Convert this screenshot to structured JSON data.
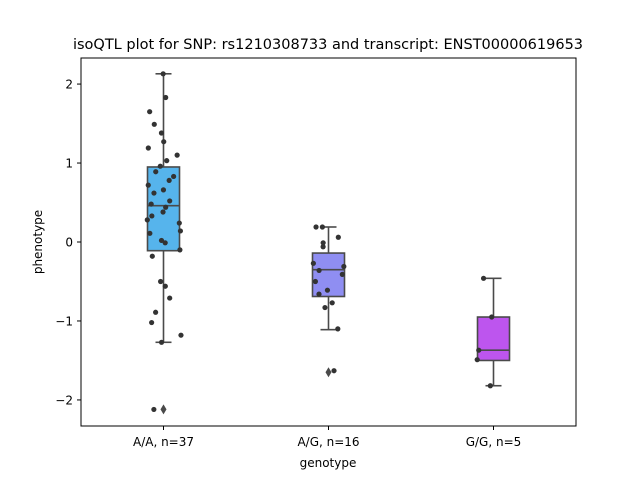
{
  "chart_data": {
    "type": "box",
    "title": "isoQTL plot for SNP: rs1210308733 and transcript: ENST00000619653",
    "xlabel": "genotype",
    "ylabel": "phenotype",
    "ylim": [
      -2.33,
      2.33
    ],
    "yticks": [
      -2,
      -1,
      0,
      1,
      2
    ],
    "categories": [
      "A/A, n=37",
      "A/G, n=16",
      "G/G, n=5"
    ],
    "colors": [
      "#56b4ec",
      "#8f8ef2",
      "#bd55ee"
    ],
    "boxes": [
      {
        "q1": -0.11,
        "median": 0.46,
        "q3": 0.95,
        "whisker_low": -1.27,
        "whisker_high": 2.13,
        "outliers": [
          -2.12
        ]
      },
      {
        "q1": -0.69,
        "median": -0.35,
        "q3": -0.14,
        "whisker_low": -1.11,
        "whisker_high": 0.19,
        "outliers": [
          -1.65
        ]
      },
      {
        "q1": -1.5,
        "median": -1.37,
        "q3": -0.95,
        "whisker_low": -1.82,
        "whisker_high": -0.46,
        "outliers": []
      }
    ],
    "points": [
      [
        2.13,
        1.83,
        1.65,
        1.49,
        1.38,
        1.27,
        1.19,
        1.1,
        1.03,
        0.96,
        0.89,
        0.83,
        0.78,
        0.72,
        0.66,
        0.62,
        0.52,
        0.48,
        0.44,
        0.38,
        0.33,
        0.28,
        0.24,
        0.14,
        0.11,
        0.02,
        -0.1,
        -0.18,
        -0.5,
        -0.56,
        -0.71,
        -0.89,
        -1.02,
        -1.18,
        -1.27,
        -2.12,
        -0.01
      ],
      [
        0.19,
        0.19,
        0.06,
        -0.01,
        -0.06,
        -0.27,
        -0.31,
        -0.36,
        -0.41,
        -0.61,
        -0.66,
        -0.77,
        -0.83,
        -1.1,
        -1.63,
        -0.5
      ],
      [
        -0.46,
        -0.95,
        -1.37,
        -1.49,
        -1.82
      ]
    ],
    "grid": false,
    "legend": "none"
  }
}
